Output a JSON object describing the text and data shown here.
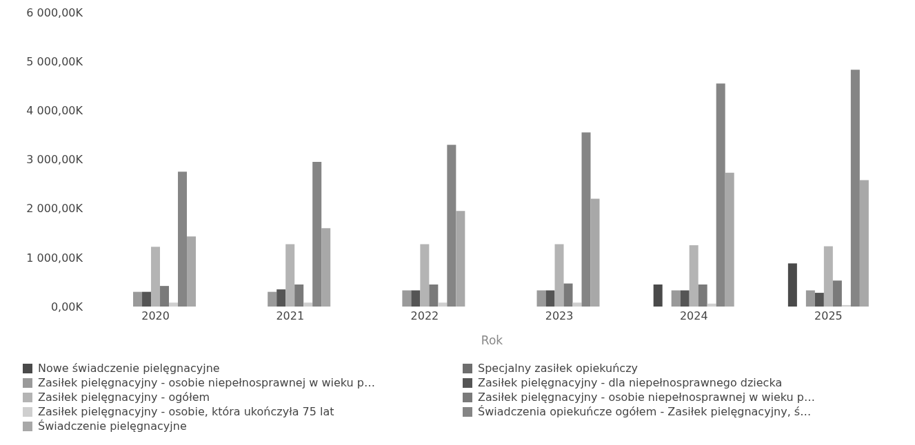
{
  "chart_data": {
    "type": "bar",
    "xlabel": "Rok",
    "categories": [
      "2020",
      "2021",
      "2022",
      "2023",
      "2024",
      "2025"
    ],
    "series": [
      {
        "name": "Nowe świadczenie pielęgnacyjne",
        "color": "#4a4a4a",
        "values": [
          null,
          null,
          null,
          null,
          450,
          880
        ]
      },
      {
        "name": "Specjalny zasiłek opiekuńczy",
        "color": "#6e6e6e",
        "values": [
          null,
          null,
          null,
          null,
          null,
          null
        ]
      },
      {
        "name": "Zasiłek pielęgnacyjny -  osobie niepełnosprawnej w wieku p…",
        "color": "#9a9a9a",
        "values": [
          300,
          300,
          330,
          330,
          330,
          330
        ]
      },
      {
        "name": "Zasiłek pielęgnacyjny - dla niepełnosprawnego dziecka",
        "color": "#555555",
        "values": [
          300,
          350,
          330,
          330,
          330,
          280
        ]
      },
      {
        "name": "Zasiłek pielęgnacyjny - ogółem",
        "color": "#b4b4b4",
        "values": [
          1220,
          1270,
          1270,
          1270,
          1250,
          1230
        ]
      },
      {
        "name": "Zasiłek pielęgnacyjny - osobie niepełnosprawnej w wieku p…",
        "color": "#7a7a7a",
        "values": [
          420,
          450,
          450,
          470,
          450,
          530
        ]
      },
      {
        "name": "Zasiłek pielęgnacyjny - osobie, która ukończyła 75 lat",
        "color": "#cfcfcf",
        "values": [
          80,
          80,
          80,
          80,
          60,
          30
        ]
      },
      {
        "name": "Świadczenia opiekuńcze ogółem - Zasiłek pielęgnacyjny, ś…",
        "color": "#858585",
        "values": [
          2750,
          2950,
          3300,
          3550,
          4550,
          4830
        ]
      },
      {
        "name": "Świadczenie pielęgnacyjne",
        "color": "#a8a8a8",
        "values": [
          1430,
          1600,
          1950,
          2200,
          2730,
          2580
        ]
      }
    ],
    "ylim": [
      0,
      6000
    ],
    "yticks": [
      {
        "value": 0,
        "label": "0,00K"
      },
      {
        "value": 1000,
        "label": "1 000,00K"
      },
      {
        "value": 2000,
        "label": "2 000,00K"
      },
      {
        "value": 3000,
        "label": "3 000,00K"
      },
      {
        "value": 4000,
        "label": "4 000,00K"
      },
      {
        "value": 5000,
        "label": "5 000,00K"
      },
      {
        "value": 6000,
        "label": "6 000,00K"
      }
    ],
    "legend": "bottom"
  }
}
